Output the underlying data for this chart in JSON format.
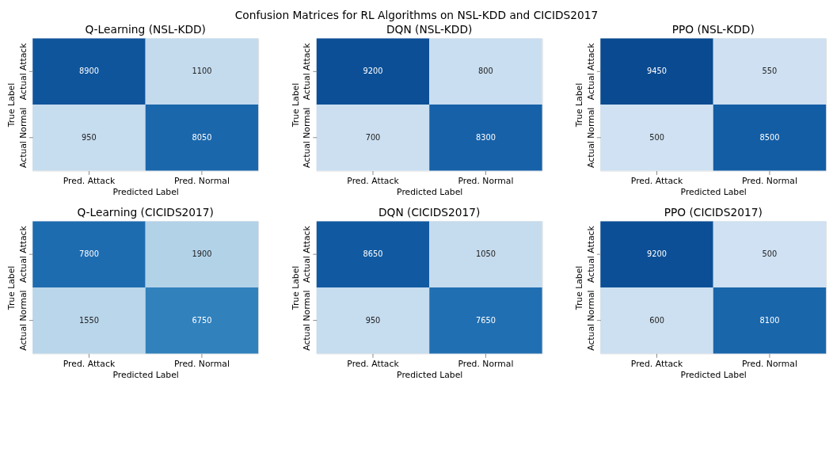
{
  "chart_data": [
    {
      "type": "heatmap",
      "title": "Q-Learning (NSL-KDD)",
      "xlabel": "Predicted Label",
      "ylabel": "True Label",
      "categories": [
        "Pred. Attack",
        "Pred. Normal"
      ],
      "y_categories": [
        "Actual Attack",
        "Actual Normal"
      ],
      "cells": [
        [
          8900,
          1100
        ],
        [
          950,
          8050
        ]
      ],
      "data_labels": true,
      "annotations": [
        "Confusion Matrices for RL Algorithms on NSL-KDD and CICIDS2017"
      ]
    },
    {
      "type": "heatmap",
      "title": "DQN (NSL-KDD)",
      "xlabel": "Predicted Label",
      "ylabel": "True Label",
      "categories": [
        "Pred. Attack",
        "Pred. Normal"
      ],
      "y_categories": [
        "Actual Attack",
        "Actual Normal"
      ],
      "cells": [
        [
          9200,
          800
        ],
        [
          700,
          8300
        ]
      ],
      "data_labels": true
    },
    {
      "type": "heatmap",
      "title": "PPO (NSL-KDD)",
      "xlabel": "Predicted Label",
      "ylabel": "True Label",
      "categories": [
        "Pred. Attack",
        "Pred. Normal"
      ],
      "y_categories": [
        "Actual Attack",
        "Actual Normal"
      ],
      "cells": [
        [
          9450,
          550
        ],
        [
          500,
          8500
        ]
      ],
      "data_labels": true
    },
    {
      "type": "heatmap",
      "title": "Q-Learning (CICIDS2017)",
      "xlabel": "Predicted Label",
      "ylabel": "True Label",
      "categories": [
        "Pred. Attack",
        "Pred. Normal"
      ],
      "y_categories": [
        "Actual Attack",
        "Actual Normal"
      ],
      "cells": [
        [
          7800,
          1900
        ],
        [
          1550,
          6750
        ]
      ],
      "data_labels": true
    },
    {
      "type": "heatmap",
      "title": "DQN (CICIDS2017)",
      "xlabel": "Predicted Label",
      "ylabel": "True Label",
      "categories": [
        "Pred. Attack",
        "Pred. Normal"
      ],
      "y_categories": [
        "Actual Attack",
        "Actual Normal"
      ],
      "cells": [
        [
          8650,
          1050
        ],
        [
          950,
          7650
        ]
      ],
      "data_labels": true
    },
    {
      "type": "heatmap",
      "title": "PPO (CICIDS2017)",
      "xlabel": "Predicted Label",
      "ylabel": "True Label",
      "categories": [
        "Pred. Attack",
        "Pred. Normal"
      ],
      "y_categories": [
        "Actual Attack",
        "Actual Normal"
      ],
      "cells": [
        [
          9200,
          500
        ],
        [
          600,
          8100
        ]
      ],
      "data_labels": true
    }
  ]
}
